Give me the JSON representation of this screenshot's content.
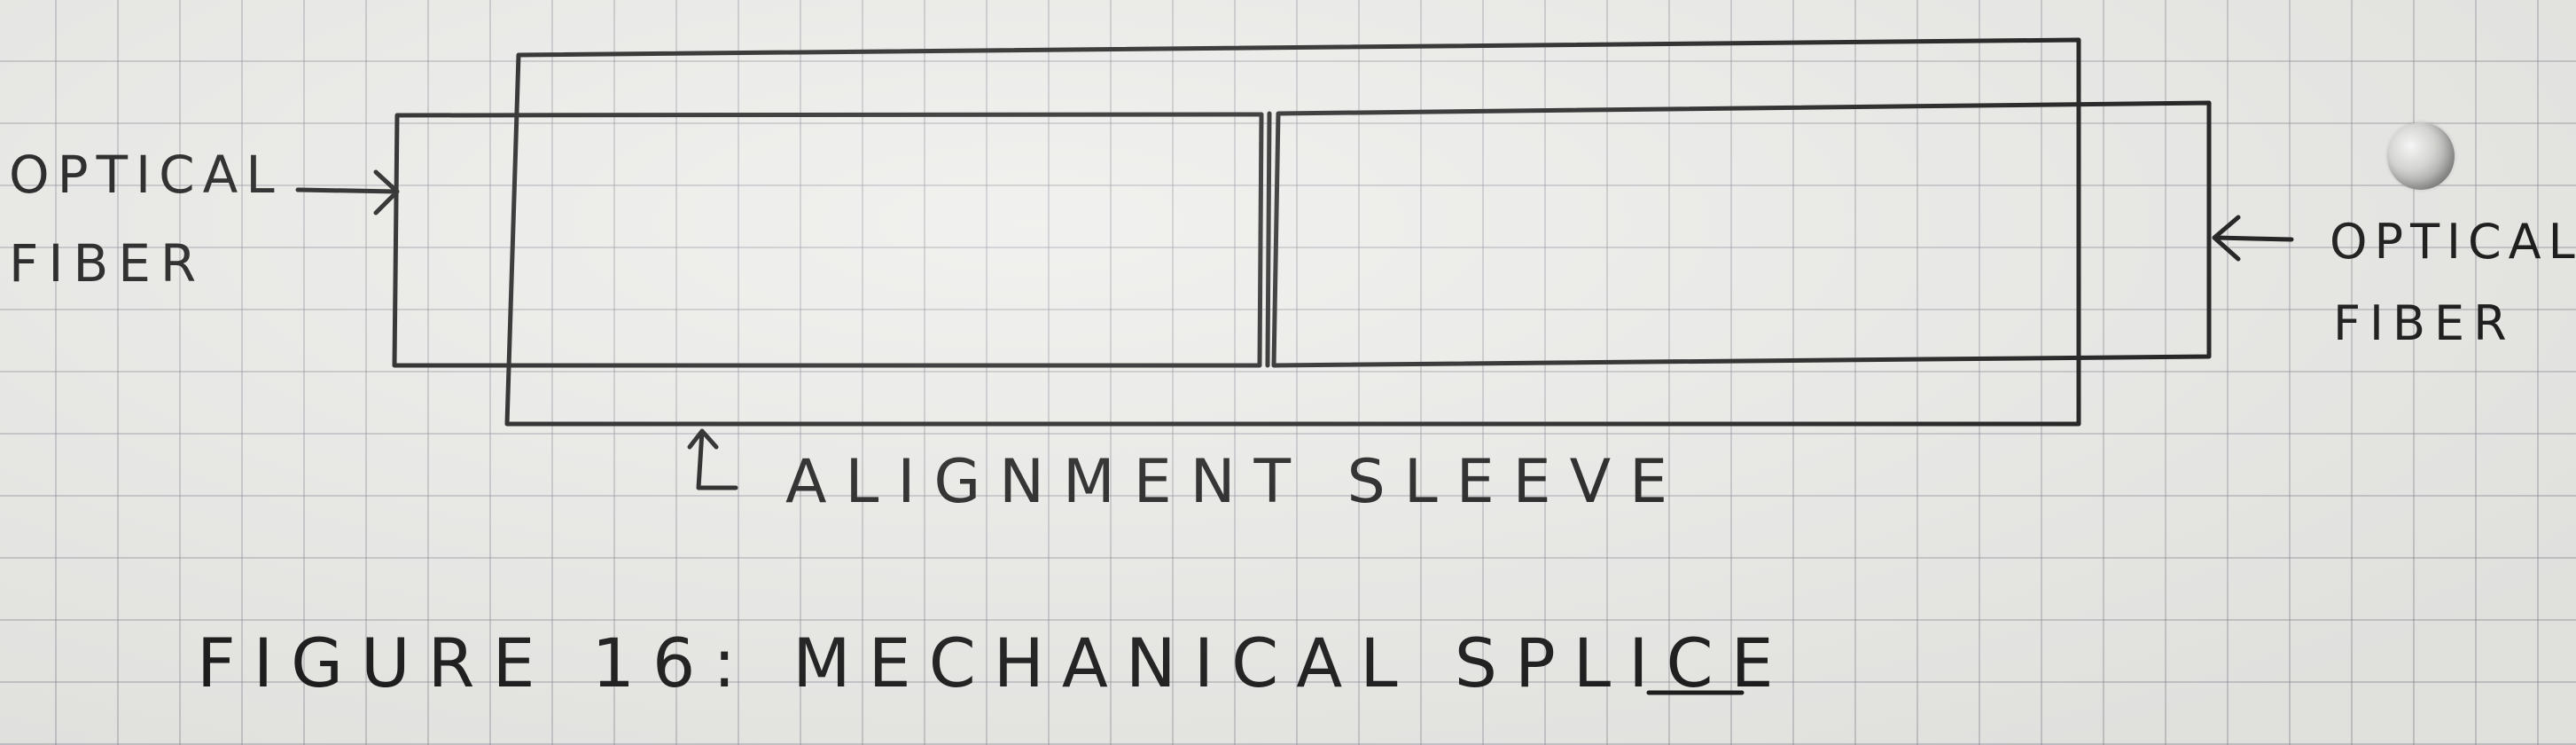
{
  "diagram": {
    "left_fiber": {
      "label_line_1": "OPTICAL",
      "label_line_2": "FIBER"
    },
    "right_fiber": {
      "label_line_1": "OPTICAL",
      "label_line_2": "FIBER"
    },
    "sleeve": {
      "label": "ALIGNMENT SLEEVE"
    },
    "caption": "FIGURE 16: MECHANICAL SPLICE"
  }
}
